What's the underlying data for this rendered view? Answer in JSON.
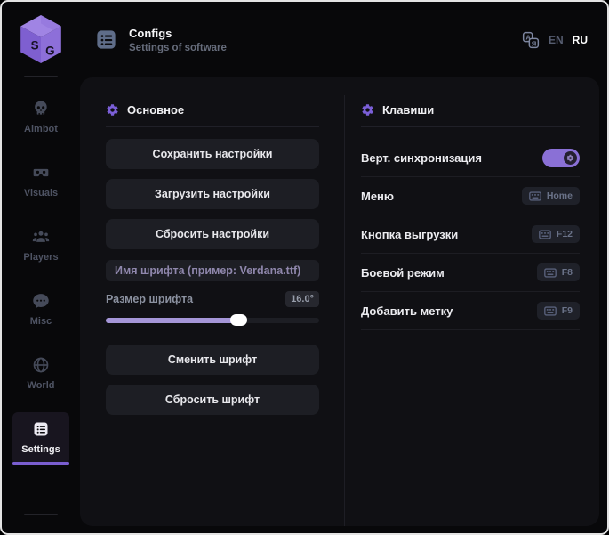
{
  "header": {
    "title": "Configs",
    "subtitle": "Settings of software",
    "languages": {
      "en": "EN",
      "ru": "RU",
      "active": "ru"
    }
  },
  "sidebar": {
    "items": [
      {
        "label": "Aimbot",
        "icon": "skull-icon",
        "active": false
      },
      {
        "label": "Visuals",
        "icon": "vr-goggles-icon",
        "active": false
      },
      {
        "label": "Players",
        "icon": "players-icon",
        "active": false
      },
      {
        "label": "Misc",
        "icon": "chat-icon",
        "active": false
      },
      {
        "label": "World",
        "icon": "globe-icon",
        "active": false
      },
      {
        "label": "Settings",
        "icon": "list-icon",
        "active": true
      }
    ]
  },
  "main": {
    "general": {
      "title": "Основное",
      "buttons": [
        "Сохранить настройки",
        "Загрузить настройки",
        "Сбросить настройки"
      ],
      "font_name_placeholder": "Имя шрифта (пример: Verdana.ttf)",
      "font_size_label": "Размер шрифта",
      "font_size_value": "16.0°",
      "slider_percent": 62,
      "font_buttons": [
        "Сменить шрифт",
        "Сбросить шрифт"
      ]
    },
    "keys": {
      "title": "Клавиши",
      "rows": [
        {
          "label": "Верт. синхронизация",
          "type": "toggle",
          "on": true
        },
        {
          "label": "Меню",
          "type": "key",
          "key": "Home"
        },
        {
          "label": "Кнопка выгрузки",
          "type": "key",
          "key": "F12"
        },
        {
          "label": "Боевой режим",
          "type": "key",
          "key": "F8"
        },
        {
          "label": "Добавить метку",
          "type": "key",
          "key": "F9"
        }
      ]
    }
  },
  "colors": {
    "accent": "#7b5fd8",
    "slider_fill": "#a596d8",
    "toggle_on": "#8a70d6"
  }
}
